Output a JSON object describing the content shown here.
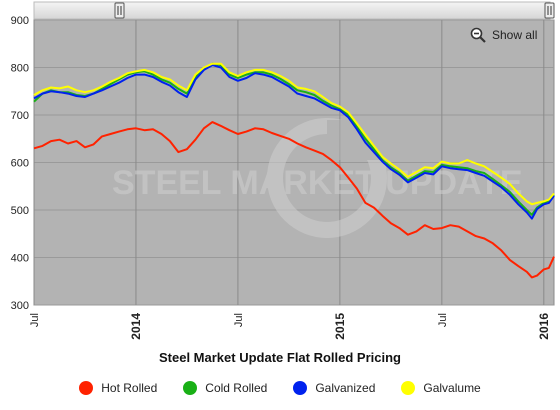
{
  "chart_data": {
    "type": "line",
    "title": "Steel Market Update Flat Rolled Pricing",
    "watermark": "STEEL MARKET UPDATE",
    "x_ticks": [
      {
        "t": 0,
        "label": "Jul",
        "bold": false
      },
      {
        "t": 6,
        "label": "2014",
        "bold": true
      },
      {
        "t": 12,
        "label": "Jul",
        "bold": false
      },
      {
        "t": 18,
        "label": "2015",
        "bold": true
      },
      {
        "t": 24,
        "label": "Jul",
        "bold": false
      },
      {
        "t": 30,
        "label": "2016",
        "bold": true
      }
    ],
    "xlim": [
      0,
      30.6
    ],
    "ylim": [
      300,
      900
    ],
    "y_ticks": [
      300,
      400,
      500,
      600,
      700,
      800,
      900
    ],
    "grid": true,
    "legend_position": "bottom",
    "series": [
      {
        "name": "Hot Rolled",
        "color": "#ff2200",
        "points": [
          [
            0,
            630
          ],
          [
            0.5,
            635
          ],
          [
            1,
            645
          ],
          [
            1.5,
            648
          ],
          [
            2,
            640
          ],
          [
            2.5,
            645
          ],
          [
            3,
            632
          ],
          [
            3.5,
            638
          ],
          [
            4,
            655
          ],
          [
            4.5,
            660
          ],
          [
            5,
            665
          ],
          [
            5.5,
            670
          ],
          [
            6,
            672
          ],
          [
            6.5,
            668
          ],
          [
            7,
            670
          ],
          [
            7.5,
            660
          ],
          [
            8,
            645
          ],
          [
            8.5,
            622
          ],
          [
            9,
            628
          ],
          [
            9.5,
            648
          ],
          [
            10,
            672
          ],
          [
            10.5,
            685
          ],
          [
            11,
            677
          ],
          [
            11.5,
            668
          ],
          [
            12,
            660
          ],
          [
            12.5,
            665
          ],
          [
            13,
            672
          ],
          [
            13.5,
            670
          ],
          [
            14,
            662
          ],
          [
            14.5,
            656
          ],
          [
            15,
            650
          ],
          [
            15.5,
            640
          ],
          [
            16,
            632
          ],
          [
            16.5,
            625
          ],
          [
            17,
            618
          ],
          [
            17.5,
            605
          ],
          [
            18,
            590
          ],
          [
            18.5,
            568
          ],
          [
            19,
            545
          ],
          [
            19.5,
            515
          ],
          [
            20,
            505
          ],
          [
            20.5,
            488
          ],
          [
            21,
            472
          ],
          [
            21.5,
            462
          ],
          [
            22,
            448
          ],
          [
            22.5,
            455
          ],
          [
            23,
            468
          ],
          [
            23.5,
            460
          ],
          [
            24,
            462
          ],
          [
            24.5,
            468
          ],
          [
            25,
            465
          ],
          [
            25.5,
            455
          ],
          [
            26,
            445
          ],
          [
            26.5,
            440
          ],
          [
            27,
            430
          ],
          [
            27.5,
            415
          ],
          [
            28,
            395
          ],
          [
            28.5,
            382
          ],
          [
            29,
            370
          ],
          [
            29.3,
            358
          ],
          [
            29.6,
            362
          ],
          [
            30,
            375
          ],
          [
            30.3,
            378
          ],
          [
            30.6,
            402
          ]
        ]
      },
      {
        "name": "Cold Rolled",
        "color": "#19b016",
        "points": [
          [
            0,
            728
          ],
          [
            0.5,
            745
          ],
          [
            1,
            752
          ],
          [
            1.5,
            748
          ],
          [
            2,
            748
          ],
          [
            2.5,
            742
          ],
          [
            3,
            740
          ],
          [
            3.5,
            745
          ],
          [
            4,
            755
          ],
          [
            4.5,
            765
          ],
          [
            5,
            775
          ],
          [
            5.5,
            785
          ],
          [
            6,
            790
          ],
          [
            6.5,
            792
          ],
          [
            7,
            785
          ],
          [
            7.5,
            775
          ],
          [
            8,
            768
          ],
          [
            8.5,
            755
          ],
          [
            9,
            745
          ],
          [
            9.5,
            780
          ],
          [
            10,
            798
          ],
          [
            10.5,
            808
          ],
          [
            11,
            805
          ],
          [
            11.5,
            785
          ],
          [
            12,
            778
          ],
          [
            12.5,
            785
          ],
          [
            13,
            790
          ],
          [
            13.5,
            790
          ],
          [
            14,
            785
          ],
          [
            14.5,
            776
          ],
          [
            15,
            765
          ],
          [
            15.5,
            752
          ],
          [
            16,
            748
          ],
          [
            16.5,
            742
          ],
          [
            17,
            730
          ],
          [
            17.5,
            720
          ],
          [
            18,
            712
          ],
          [
            18.5,
            700
          ],
          [
            19,
            675
          ],
          [
            19.5,
            650
          ],
          [
            20,
            628
          ],
          [
            20.5,
            605
          ],
          [
            21,
            590
          ],
          [
            21.5,
            578
          ],
          [
            22,
            562
          ],
          [
            22.5,
            572
          ],
          [
            23,
            582
          ],
          [
            23.5,
            580
          ],
          [
            24,
            595
          ],
          [
            24.5,
            592
          ],
          [
            25,
            590
          ],
          [
            25.5,
            588
          ],
          [
            26,
            582
          ],
          [
            26.5,
            578
          ],
          [
            27,
            565
          ],
          [
            27.5,
            552
          ],
          [
            28,
            538
          ],
          [
            28.5,
            518
          ],
          [
            29,
            500
          ],
          [
            29.3,
            490
          ],
          [
            29.6,
            505
          ],
          [
            30,
            515
          ],
          [
            30.3,
            520
          ],
          [
            30.6,
            532
          ]
        ]
      },
      {
        "name": "Galvanized",
        "color": "#0022ee",
        "points": [
          [
            0,
            735
          ],
          [
            0.5,
            745
          ],
          [
            1,
            750
          ],
          [
            1.5,
            748
          ],
          [
            2,
            745
          ],
          [
            2.5,
            740
          ],
          [
            3,
            738
          ],
          [
            3.5,
            745
          ],
          [
            4,
            752
          ],
          [
            4.5,
            760
          ],
          [
            5,
            768
          ],
          [
            5.5,
            778
          ],
          [
            6,
            785
          ],
          [
            6.5,
            785
          ],
          [
            7,
            780
          ],
          [
            7.5,
            770
          ],
          [
            8,
            762
          ],
          [
            8.5,
            748
          ],
          [
            9,
            738
          ],
          [
            9.5,
            775
          ],
          [
            10,
            795
          ],
          [
            10.5,
            805
          ],
          [
            11,
            800
          ],
          [
            11.5,
            780
          ],
          [
            12,
            772
          ],
          [
            12.5,
            778
          ],
          [
            13,
            788
          ],
          [
            13.5,
            785
          ],
          [
            14,
            780
          ],
          [
            14.5,
            770
          ],
          [
            15,
            760
          ],
          [
            15.5,
            745
          ],
          [
            16,
            740
          ],
          [
            16.5,
            735
          ],
          [
            17,
            725
          ],
          [
            17.5,
            715
          ],
          [
            18,
            710
          ],
          [
            18.5,
            695
          ],
          [
            19,
            670
          ],
          [
            19.5,
            642
          ],
          [
            20,
            622
          ],
          [
            20.5,
            602
          ],
          [
            21,
            586
          ],
          [
            21.5,
            574
          ],
          [
            22,
            558
          ],
          [
            22.5,
            568
          ],
          [
            23,
            578
          ],
          [
            23.5,
            575
          ],
          [
            24,
            592
          ],
          [
            24.5,
            588
          ],
          [
            25,
            586
          ],
          [
            25.5,
            584
          ],
          [
            26,
            578
          ],
          [
            26.5,
            572
          ],
          [
            27,
            560
          ],
          [
            27.5,
            548
          ],
          [
            28,
            532
          ],
          [
            28.5,
            512
          ],
          [
            29,
            495
          ],
          [
            29.3,
            482
          ],
          [
            29.6,
            502
          ],
          [
            30,
            512
          ],
          [
            30.3,
            515
          ],
          [
            30.6,
            530
          ]
        ]
      },
      {
        "name": "Galvalume",
        "color": "#ffff00",
        "points": [
          [
            0,
            742
          ],
          [
            0.5,
            752
          ],
          [
            1,
            758
          ],
          [
            1.5,
            756
          ],
          [
            2,
            760
          ],
          [
            2.5,
            752
          ],
          [
            3,
            748
          ],
          [
            3.5,
            752
          ],
          [
            4,
            760
          ],
          [
            4.5,
            770
          ],
          [
            5,
            778
          ],
          [
            5.5,
            788
          ],
          [
            6,
            792
          ],
          [
            6.5,
            795
          ],
          [
            7,
            790
          ],
          [
            7.5,
            780
          ],
          [
            8,
            775
          ],
          [
            8.5,
            762
          ],
          [
            9,
            752
          ],
          [
            9.5,
            785
          ],
          [
            10,
            800
          ],
          [
            10.5,
            808
          ],
          [
            11,
            808
          ],
          [
            11.5,
            790
          ],
          [
            12,
            782
          ],
          [
            12.5,
            790
          ],
          [
            13,
            795
          ],
          [
            13.5,
            795
          ],
          [
            14,
            790
          ],
          [
            14.5,
            782
          ],
          [
            15,
            772
          ],
          [
            15.5,
            758
          ],
          [
            16,
            755
          ],
          [
            16.5,
            750
          ],
          [
            17,
            738
          ],
          [
            17.5,
            725
          ],
          [
            18,
            718
          ],
          [
            18.5,
            705
          ],
          [
            19,
            682
          ],
          [
            19.5,
            658
          ],
          [
            20,
            635
          ],
          [
            20.5,
            612
          ],
          [
            21,
            598
          ],
          [
            21.5,
            585
          ],
          [
            22,
            570
          ],
          [
            22.5,
            580
          ],
          [
            23,
            590
          ],
          [
            23.5,
            588
          ],
          [
            24,
            602
          ],
          [
            24.5,
            598
          ],
          [
            25,
            598
          ],
          [
            25.5,
            605
          ],
          [
            26,
            598
          ],
          [
            26.5,
            592
          ],
          [
            27,
            580
          ],
          [
            27.5,
            568
          ],
          [
            28,
            555
          ],
          [
            28.5,
            535
          ],
          [
            29,
            518
          ],
          [
            29.3,
            512
          ],
          [
            29.6,
            515
          ],
          [
            30,
            518
          ],
          [
            30.3,
            522
          ],
          [
            30.6,
            535
          ]
        ]
      }
    ]
  },
  "toolbar": {
    "zoom_label": "Show all"
  }
}
